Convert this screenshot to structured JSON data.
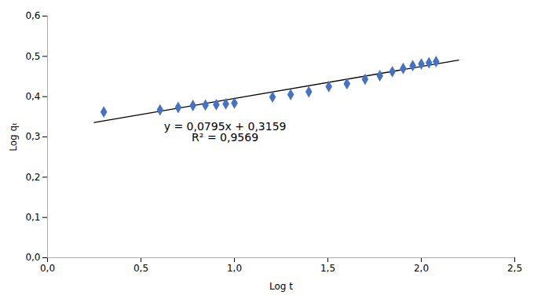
{
  "chart_data": {
    "type": "scatter",
    "x_label": "Log t",
    "y_label": "Log qₜ",
    "annotations": [
      "y = 0,0795x + 0,3159",
      "R² = 0,9569"
    ],
    "series": [
      {
        "type": "scatter",
        "color": "#4472C4",
        "marker": "diamond",
        "x": [
          0.301,
          0.602,
          0.699,
          0.778,
          0.845,
          0.903,
          0.954,
          1.0,
          1.204,
          1.301,
          1.398,
          1.505,
          1.602,
          1.699,
          1.778,
          1.845,
          1.903,
          1.954,
          2.0,
          2.041,
          2.079
        ],
        "values": [
          0.362,
          0.367,
          0.373,
          0.378,
          0.379,
          0.38,
          0.382,
          0.384,
          0.399,
          0.405,
          0.412,
          0.425,
          0.432,
          0.443,
          0.452,
          0.462,
          0.47,
          0.477,
          0.481,
          0.484,
          0.487
        ]
      },
      {
        "type": "line",
        "color": "#000000",
        "x": [
          0.25,
          2.2
        ],
        "values": [
          0.335775,
          0.4908
        ]
      }
    ],
    "xlim": [
      0.0,
      2.5
    ],
    "ylim": [
      0.0,
      0.6
    ],
    "xticks": [
      {
        "value": 0,
        "label": "0,0"
      },
      {
        "value": 0.5,
        "label": "0,5"
      },
      {
        "value": 1,
        "label": "1,0"
      },
      {
        "value": 1.5,
        "label": "1,5"
      },
      {
        "value": 2,
        "label": "2,0"
      },
      {
        "value": 2.5,
        "label": "2,5"
      }
    ],
    "yticks": [
      {
        "value": 0,
        "label": "0,0"
      },
      {
        "value": 0.1,
        "label": "0,1"
      },
      {
        "value": 0.2,
        "label": "0,2"
      },
      {
        "value": 0.3,
        "label": "0,3"
      },
      {
        "value": 0.4,
        "label": "0,4"
      },
      {
        "value": 0.5,
        "label": "0,5"
      },
      {
        "value": 0.6,
        "label": "0,6"
      }
    ],
    "grid": false
  }
}
